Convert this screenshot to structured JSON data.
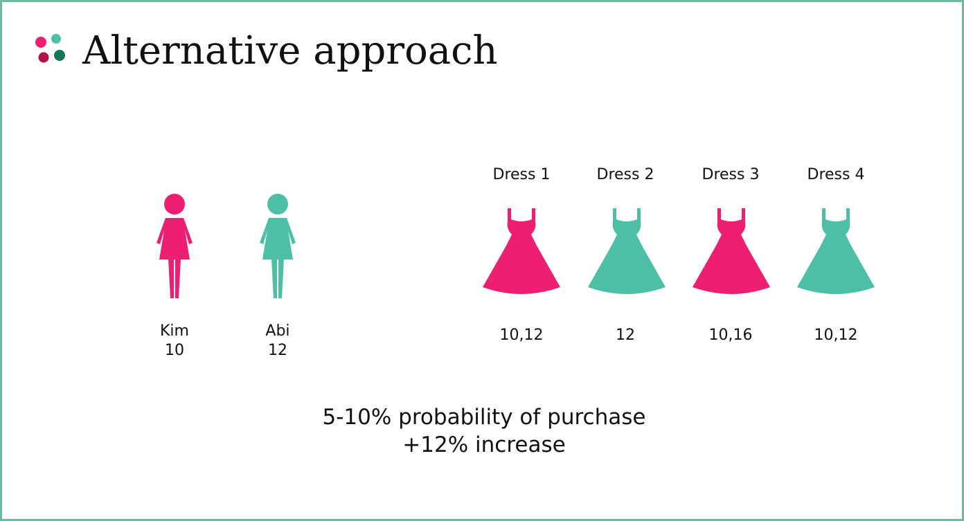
{
  "slide": {
    "title": "Alternative approach",
    "logo_icon": "four-dots-logo-icon",
    "colors": {
      "pink": "#ee1f73",
      "teal": "#4cbfa6",
      "dark_pink": "#b4104c",
      "dark_teal": "#137559",
      "border": "#6fb9a2"
    }
  },
  "people": [
    {
      "name": "Kim",
      "size": "10",
      "icon": "woman-icon",
      "color": "#ee1f73"
    },
    {
      "name": "Abi",
      "size": "12",
      "icon": "woman-icon",
      "color": "#4cbfa6"
    }
  ],
  "dresses": [
    {
      "label": "Dress 1",
      "sizes": "10,12",
      "icon": "dress-icon",
      "color": "#ee1f73"
    },
    {
      "label": "Dress 2",
      "sizes": "12",
      "icon": "dress-icon",
      "color": "#4cbfa6"
    },
    {
      "label": "Dress 3",
      "sizes": "10,16",
      "icon": "dress-icon",
      "color": "#ee1f73"
    },
    {
      "label": "Dress 4",
      "sizes": "10,12",
      "icon": "dress-icon",
      "color": "#4cbfa6"
    }
  ],
  "summary": {
    "line1": "5-10% probability of purchase",
    "line2": "+12% increase"
  }
}
